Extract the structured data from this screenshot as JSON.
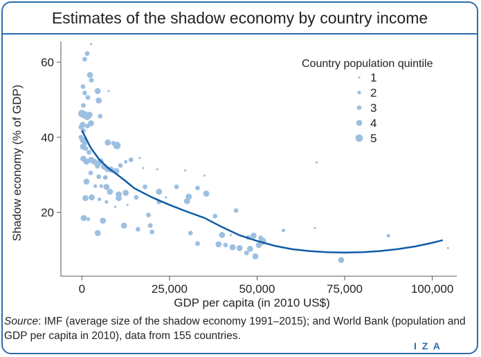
{
  "title": "Estimates of the shadow economy by country income",
  "source": {
    "label": "Source",
    "text": ": IMF (average size of the shadow economy 1991–2015); and World Bank (population and GDP per capita in 2010), data from 155 countries."
  },
  "logo": "I Z A",
  "colors": {
    "accent": "#2b6cab",
    "points": "#9dbfe0",
    "line": "#0d5aa5"
  },
  "chart_data": {
    "type": "scatter",
    "title": "Estimates of the shadow economy by country income",
    "xlabel": "GDP per capita (in 2010 US$)",
    "ylabel": "Shadow economy (% of GDP)",
    "xlim": [
      -6000,
      107000
    ],
    "ylim": [
      3,
      67
    ],
    "xticks": [
      {
        "v": 0,
        "label": "0"
      },
      {
        "v": 25000,
        "label": "25,000"
      },
      {
        "v": 50000,
        "label": "50,000"
      },
      {
        "v": 75000,
        "label": "75,000"
      },
      {
        "v": 100000,
        "label": "100,000"
      }
    ],
    "yticks": [
      {
        "v": 20,
        "label": "20"
      },
      {
        "v": 40,
        "label": "40"
      },
      {
        "v": 60,
        "label": "60"
      }
    ],
    "grid": false,
    "legend": {
      "title": "Country population quintile",
      "position": "top-right",
      "items": [
        {
          "label": "1",
          "q": 1
        },
        {
          "label": "2",
          "q": 2
        },
        {
          "label": "3",
          "q": 3
        },
        {
          "label": "4",
          "q": 4
        },
        {
          "label": "5",
          "q": 5
        }
      ]
    },
    "points": [
      {
        "x": 2600,
        "y": 64.8,
        "q": 1
      },
      {
        "x": 1500,
        "y": 62.3,
        "q": 3
      },
      {
        "x": 800,
        "y": 60.8,
        "q": 3
      },
      {
        "x": 2300,
        "y": 56.6,
        "q": 4
      },
      {
        "x": 2700,
        "y": 55.2,
        "q": 3
      },
      {
        "x": 300,
        "y": 53.5,
        "q": 3
      },
      {
        "x": 4500,
        "y": 52.3,
        "q": 4
      },
      {
        "x": 7600,
        "y": 52.3,
        "q": 1
      },
      {
        "x": 800,
        "y": 51.8,
        "q": 3
      },
      {
        "x": 1700,
        "y": 50.6,
        "q": 3
      },
      {
        "x": 4800,
        "y": 49.8,
        "q": 4
      },
      {
        "x": 400,
        "y": 48.5,
        "q": 3
      },
      {
        "x": 0,
        "y": 46.3,
        "q": 5
      },
      {
        "x": 700,
        "y": 46.0,
        "q": 5
      },
      {
        "x": 1500,
        "y": 45.6,
        "q": 5
      },
      {
        "x": 2200,
        "y": 46.0,
        "q": 4
      },
      {
        "x": 5200,
        "y": 45.6,
        "q": 3
      },
      {
        "x": 2600,
        "y": 43.7,
        "q": 4
      },
      {
        "x": 200,
        "y": 43.3,
        "q": 4
      },
      {
        "x": 1600,
        "y": 43.0,
        "q": 3
      },
      {
        "x": -300,
        "y": 42.7,
        "q": 3
      },
      {
        "x": 400,
        "y": 41.8,
        "q": 3
      },
      {
        "x": -300,
        "y": 40.0,
        "q": 3
      },
      {
        "x": 300,
        "y": 39.2,
        "q": 4
      },
      {
        "x": 800,
        "y": 38.3,
        "q": 3
      },
      {
        "x": 300,
        "y": 37.5,
        "q": 4
      },
      {
        "x": 1100,
        "y": 37.0,
        "q": 3
      },
      {
        "x": 2000,
        "y": 36.0,
        "q": 3
      },
      {
        "x": 7400,
        "y": 38.6,
        "q": 4
      },
      {
        "x": 9000,
        "y": 38.4,
        "q": 3
      },
      {
        "x": 10000,
        "y": 37.8,
        "q": 5
      },
      {
        "x": 400,
        "y": 34.3,
        "q": 4
      },
      {
        "x": 1300,
        "y": 33.5,
        "q": 4
      },
      {
        "x": 2600,
        "y": 34.0,
        "q": 4
      },
      {
        "x": 3500,
        "y": 33.5,
        "q": 4
      },
      {
        "x": 4500,
        "y": 32.8,
        "q": 4
      },
      {
        "x": 5300,
        "y": 33.6,
        "q": 4
      },
      {
        "x": 4400,
        "y": 32.3,
        "q": 3
      },
      {
        "x": 6300,
        "y": 32.2,
        "q": 4
      },
      {
        "x": 7300,
        "y": 31.5,
        "q": 4
      },
      {
        "x": 8300,
        "y": 31.4,
        "q": 4
      },
      {
        "x": 9800,
        "y": 31.0,
        "q": 4
      },
      {
        "x": 11000,
        "y": 32.5,
        "q": 3
      },
      {
        "x": 12500,
        "y": 33.5,
        "q": 2
      },
      {
        "x": 14000,
        "y": 34.0,
        "q": 3
      },
      {
        "x": 16500,
        "y": 34.5,
        "q": 1
      },
      {
        "x": 17500,
        "y": 31.8,
        "q": 1
      },
      {
        "x": 21500,
        "y": 31.5,
        "q": 1
      },
      {
        "x": 29500,
        "y": 31.2,
        "q": 1
      },
      {
        "x": 35000,
        "y": 29.8,
        "q": 1
      },
      {
        "x": 67000,
        "y": 33.3,
        "q": 1
      },
      {
        "x": 2500,
        "y": 30.5,
        "q": 3
      },
      {
        "x": 4800,
        "y": 29.5,
        "q": 3
      },
      {
        "x": 6700,
        "y": 29.3,
        "q": 3
      },
      {
        "x": 1300,
        "y": 28.2,
        "q": 4
      },
      {
        "x": 3800,
        "y": 27.0,
        "q": 2
      },
      {
        "x": 5500,
        "y": 27.0,
        "q": 2
      },
      {
        "x": 7000,
        "y": 26.8,
        "q": 4
      },
      {
        "x": 8000,
        "y": 25.5,
        "q": 4
      },
      {
        "x": 10500,
        "y": 24.8,
        "q": 4
      },
      {
        "x": 12500,
        "y": 25.2,
        "q": 4
      },
      {
        "x": 18000,
        "y": 26.8,
        "q": 3
      },
      {
        "x": 22000,
        "y": 25.5,
        "q": 4
      },
      {
        "x": 27000,
        "y": 26.8,
        "q": 3
      },
      {
        "x": 33000,
        "y": 26.5,
        "q": 3
      },
      {
        "x": 35500,
        "y": 25.0,
        "q": 4
      },
      {
        "x": 30500,
        "y": 24.2,
        "q": 4
      },
      {
        "x": 15500,
        "y": 24.0,
        "q": 3
      },
      {
        "x": 10500,
        "y": 23.8,
        "q": 4
      },
      {
        "x": 2800,
        "y": 24.0,
        "q": 4
      },
      {
        "x": 1000,
        "y": 23.8,
        "q": 4
      },
      {
        "x": 5000,
        "y": 23.5,
        "q": 2
      },
      {
        "x": 7000,
        "y": 22.8,
        "q": 2
      },
      {
        "x": 9500,
        "y": 21.5,
        "q": 1
      },
      {
        "x": 13000,
        "y": 22.0,
        "q": 1
      },
      {
        "x": 22000,
        "y": 22.8,
        "q": 3
      },
      {
        "x": 24000,
        "y": 24.0,
        "q": 1
      },
      {
        "x": 30000,
        "y": 23.0,
        "q": 4
      },
      {
        "x": 19000,
        "y": 19.3,
        "q": 3
      },
      {
        "x": 44000,
        "y": 20.5,
        "q": 3
      },
      {
        "x": 38000,
        "y": 19.0,
        "q": 3
      },
      {
        "x": 500,
        "y": 18.5,
        "q": 4
      },
      {
        "x": 1800,
        "y": 18.2,
        "q": 2
      },
      {
        "x": 6000,
        "y": 17.8,
        "q": 4
      },
      {
        "x": 12000,
        "y": 16.5,
        "q": 4
      },
      {
        "x": 16000,
        "y": 15.5,
        "q": 3
      },
      {
        "x": 19500,
        "y": 16.5,
        "q": 3
      },
      {
        "x": 20000,
        "y": 14.8,
        "q": 3
      },
      {
        "x": 4500,
        "y": 14.5,
        "q": 4
      },
      {
        "x": 31000,
        "y": 14.5,
        "q": 3
      },
      {
        "x": 33000,
        "y": 11.7,
        "q": 3
      },
      {
        "x": 40000,
        "y": 14.0,
        "q": 4
      },
      {
        "x": 42500,
        "y": 14.0,
        "q": 1
      },
      {
        "x": 47500,
        "y": 13.3,
        "q": 3
      },
      {
        "x": 49000,
        "y": 13.8,
        "q": 4
      },
      {
        "x": 51000,
        "y": 13.2,
        "q": 3
      },
      {
        "x": 51500,
        "y": 12.3,
        "q": 5
      },
      {
        "x": 39000,
        "y": 11.5,
        "q": 4
      },
      {
        "x": 41000,
        "y": 11.3,
        "q": 3
      },
      {
        "x": 43000,
        "y": 10.7,
        "q": 4
      },
      {
        "x": 45000,
        "y": 10.5,
        "q": 4
      },
      {
        "x": 48000,
        "y": 10.3,
        "q": 4
      },
      {
        "x": 50500,
        "y": 11.3,
        "q": 4
      },
      {
        "x": 47000,
        "y": 9.2,
        "q": 3
      },
      {
        "x": 49500,
        "y": 8.3,
        "q": 4
      },
      {
        "x": 57500,
        "y": 15.2,
        "q": 2
      },
      {
        "x": 66500,
        "y": 15.8,
        "q": 1
      },
      {
        "x": 87500,
        "y": 13.8,
        "q": 2
      },
      {
        "x": 104500,
        "y": 10.5,
        "q": 1
      },
      {
        "x": 74000,
        "y": 7.3,
        "q": 4
      }
    ],
    "fit_line": {
      "x": [
        0,
        2500,
        5000,
        7500,
        10000,
        12500,
        15000,
        20000,
        25000,
        30000,
        35000,
        40000,
        45000,
        50000,
        55000,
        60000,
        65000,
        70000,
        75000,
        80000,
        85000,
        90000,
        95000,
        100000,
        103000
      ],
      "y": [
        41.8,
        37.2,
        34.0,
        31.8,
        30.1,
        28.3,
        26.4,
        24.0,
        22.0,
        20.2,
        18.5,
        16.1,
        13.9,
        12.4,
        11.1,
        10.2,
        9.7,
        9.4,
        9.3,
        9.4,
        9.7,
        10.2,
        10.9,
        11.9,
        12.6
      ]
    }
  }
}
